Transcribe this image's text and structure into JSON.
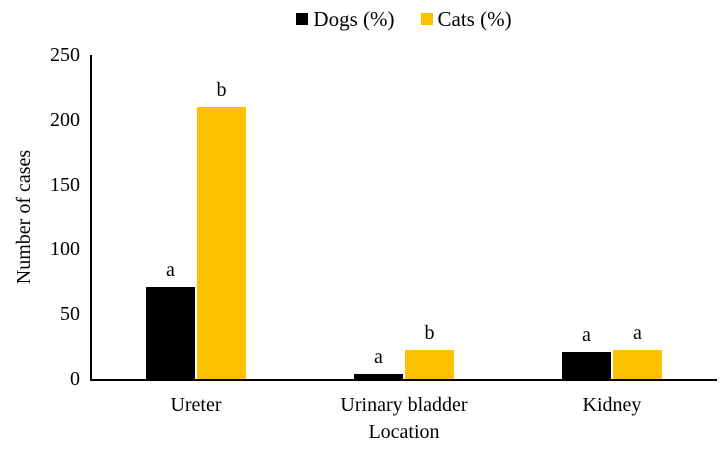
{
  "chart_data": {
    "type": "bar",
    "title": "",
    "categories": [
      "Ureter",
      "Urinary bladder",
      "Kidney"
    ],
    "series": [
      {
        "name": "Dogs (%)",
        "color": "#000000",
        "values": [
          71,
          4,
          21
        ],
        "bar_labels": [
          "a",
          "a",
          "a"
        ]
      },
      {
        "name": "Cats (%)",
        "color": "#FFC000",
        "values": [
          210,
          22,
          22
        ],
        "bar_labels": [
          "b",
          "b",
          "a"
        ]
      }
    ],
    "xlabel": "Location",
    "ylabel": "Number of cases",
    "ylim": [
      0,
      250
    ],
    "yticks": [
      0,
      50,
      100,
      150,
      200,
      250
    ],
    "grid": false,
    "legend_position": "top-center",
    "axis_color": "#000000",
    "background_color": "#FFFFFF"
  }
}
